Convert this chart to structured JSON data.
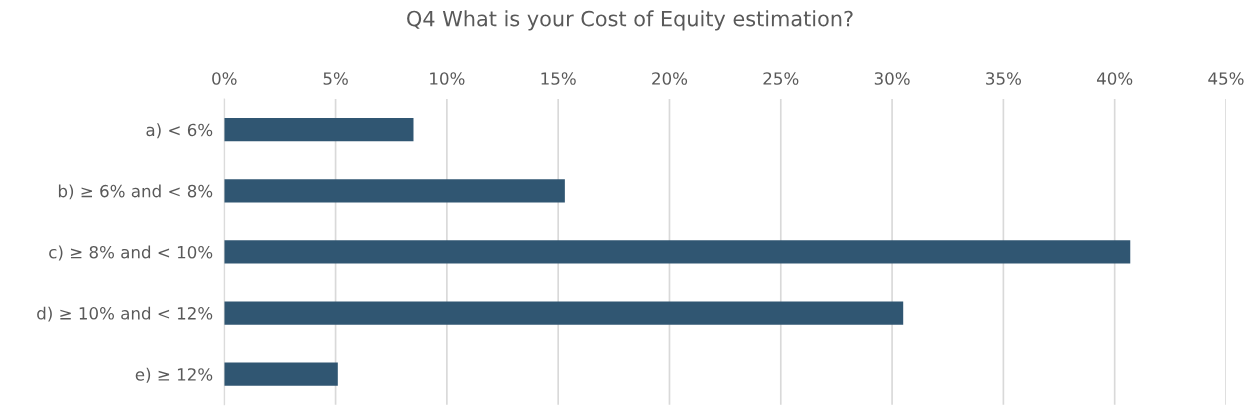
{
  "chart_data": {
    "type": "bar",
    "orientation": "horizontal",
    "title": "Q4 What is your Cost of Equity estimation?",
    "categories": [
      "a) < 6%",
      "b) ≥ 6% and < 8%",
      "c) ≥ 8% and < 10%",
      "d) ≥ 10% and < 12%",
      "e) ≥ 12%"
    ],
    "values": [
      8.5,
      15.3,
      40.7,
      30.5,
      5.1
    ],
    "color": "#305672",
    "xlim": [
      0,
      45
    ],
    "xticks": [
      {
        "value": 0,
        "label": "0%"
      },
      {
        "value": 5,
        "label": "5%"
      },
      {
        "value": 10,
        "label": "10%"
      },
      {
        "value": 15,
        "label": "15%"
      },
      {
        "value": 20,
        "label": "20%"
      },
      {
        "value": 25,
        "label": "25%"
      },
      {
        "value": 30,
        "label": "30%"
      },
      {
        "value": 35,
        "label": "35%"
      },
      {
        "value": 40,
        "label": "40%"
      },
      {
        "value": 45,
        "label": "45%"
      }
    ],
    "grid": "x"
  }
}
